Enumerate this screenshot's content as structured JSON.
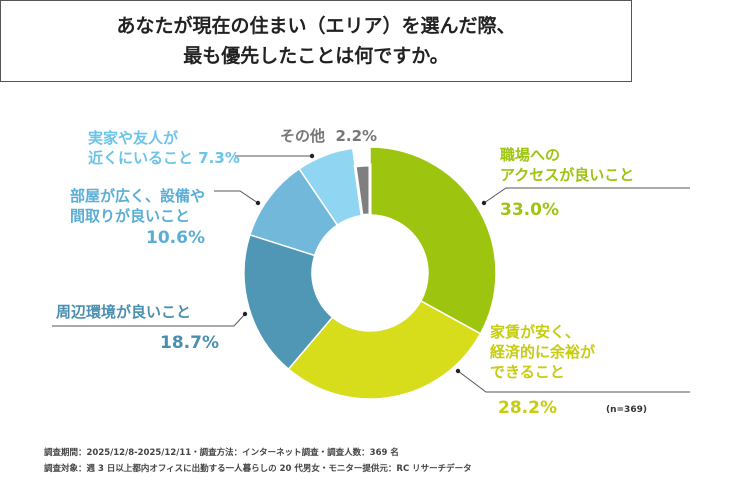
{
  "title": {
    "line1": "あなたが現在の住まい（エリア）を選んだ際、",
    "line2": "最も優先したことは何ですか。"
  },
  "chart_data": {
    "type": "pie",
    "donut": true,
    "slices": [
      {
        "name": "職場へのアクセスが良いこと",
        "line1": "職場への",
        "line2": "アクセスが良いこと",
        "value": 33.0,
        "label": "33.0%",
        "color": "#9dc40f"
      },
      {
        "name": "家賃が安く、経済的に余裕ができること",
        "line1": "家賃が安く、",
        "line2": "経済的に余裕が",
        "line3": "できること",
        "value": 28.2,
        "label": "28.2%",
        "color": "#d7dc1b"
      },
      {
        "name": "周辺環境が良いこと",
        "line1": "周辺環境が良いこと",
        "value": 18.7,
        "label": "18.7%",
        "color": "#5096b5"
      },
      {
        "name": "部屋が広く、設備や間取りが良いこと",
        "line1": "部屋が広く、設備や",
        "line2": "間取りが良いこと",
        "value": 10.6,
        "label": "10.6%",
        "color": "#72b8db"
      },
      {
        "name": "実家や友人が近くにいること",
        "line1": "実家や友人が",
        "line2": "近くにいること",
        "value": 7.3,
        "label": "7.3%",
        "color": "#90d5f2"
      },
      {
        "name": "その他",
        "line1": "その他",
        "value": 2.2,
        "label": "2.2%",
        "color": "#7f7f7f"
      }
    ],
    "n_label": "(n=369)"
  },
  "footer": {
    "line1": "調査期間：2025/12/8-2025/12/11・調査方法：インターネット調査・調査人数：369 名",
    "line2": "調査対象：週 3 日以上都内オフィスに出勤する一人暮らしの 20 代男女・モニター提供元：RC リサーチデータ"
  }
}
